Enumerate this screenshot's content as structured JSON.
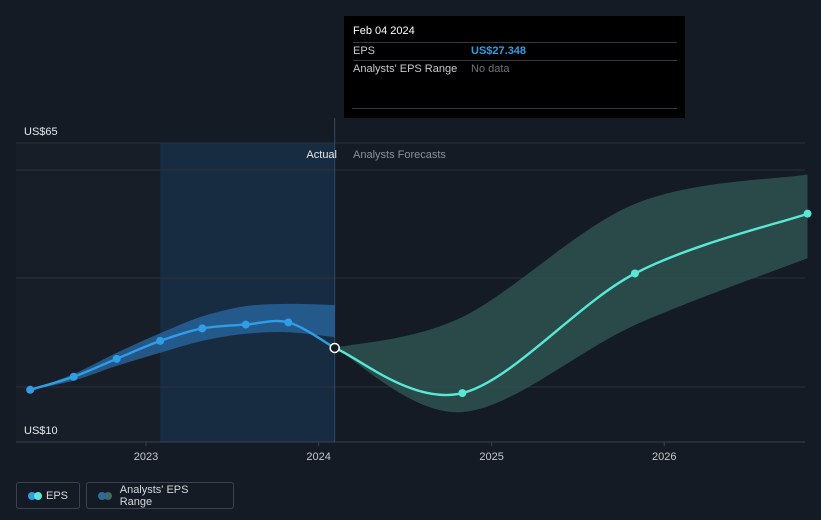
{
  "tooltip": {
    "date": "Feb 04 2024",
    "eps_label": "EPS",
    "eps_value": "US$27.348",
    "range_label": "Analysts' EPS Range",
    "range_value": "No data"
  },
  "labels": {
    "actual": "Actual",
    "forecast": "Analysts Forecasts"
  },
  "legend": {
    "eps": "EPS",
    "range": "Analysts' EPS Range"
  },
  "colors": {
    "background": "#151b24",
    "eps_actual": "#2f9ee6",
    "eps_forecast": "#58e8d6",
    "range_actual": "#2c6aa0",
    "range_forecast": "#2f5553"
  },
  "chart_data": {
    "type": "line",
    "title": "",
    "xlabel": "",
    "ylabel": "",
    "ylim": [
      10,
      65
    ],
    "y_tick_labels": [
      "US$10",
      "US$65"
    ],
    "x_ticks": [
      "2023",
      "2024",
      "2025",
      "2026"
    ],
    "xlim": [
      "2022-04",
      "2026-11"
    ],
    "grid": true,
    "legend_position": "bottom-left",
    "series": [
      {
        "name": "EPS",
        "segment": "actual",
        "x": [
          "2022-05-01",
          "2022-08-01",
          "2022-10-31",
          "2023-01-31",
          "2023-04-30",
          "2023-07-31",
          "2023-10-29",
          "2024-02-04"
        ],
        "y": [
          19.6,
          22.0,
          25.3,
          28.6,
          30.9,
          31.6,
          32.0,
          27.3
        ]
      },
      {
        "name": "EPS",
        "segment": "forecast",
        "x": [
          "2024-02-04",
          "2024-10-31",
          "2025-10-31",
          "2026-10-31"
        ],
        "y": [
          27.3,
          19.0,
          41.0,
          52.0
        ]
      }
    ],
    "ranges": [
      {
        "name": "Analysts' EPS Range",
        "segment": "actual",
        "x": [
          "2022-05-01",
          "2022-08-01",
          "2022-10-31",
          "2023-01-31",
          "2023-04-30",
          "2023-07-31",
          "2023-10-29",
          "2024-02-04"
        ],
        "low": [
          19.6,
          21.3,
          24.0,
          26.4,
          28.6,
          29.9,
          30.2,
          29.3
        ],
        "high": [
          19.6,
          22.5,
          26.4,
          30.0,
          33.1,
          35.0,
          35.4,
          35.2
        ]
      },
      {
        "name": "Analysts' EPS Range",
        "segment": "forecast",
        "x": [
          "2024-02-04",
          "2024-10-31",
          "2025-10-31",
          "2026-10-31"
        ],
        "low": [
          27.3,
          15.5,
          31.5,
          43.8
        ],
        "high": [
          27.3,
          33.0,
          53.8,
          59.2
        ]
      }
    ]
  }
}
